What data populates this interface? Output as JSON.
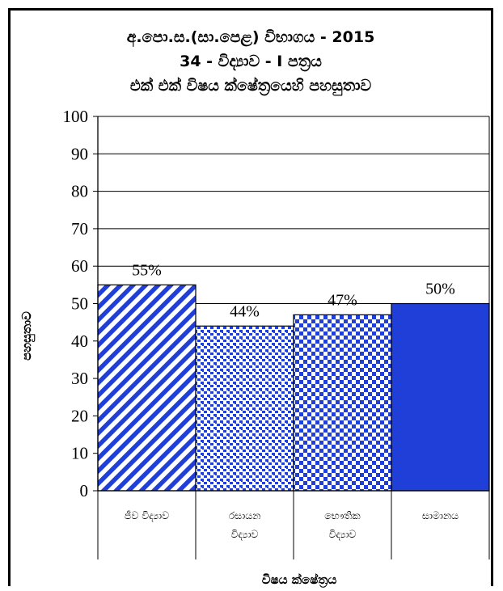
{
  "chart_data": {
    "type": "bar",
    "title_lines": [
      "අ.පො.ස.(සා.පෙළ) විභාගය - 2015",
      "34  -  විද්‍යාව  -  I පත්‍රය",
      "එක් එක් විෂය ක්ෂේත්‍රයෙහි පහසුතාව"
    ],
    "categories": [
      [
        "ජීව විද්‍යාව"
      ],
      [
        "රසායන",
        "විද්‍යාව"
      ],
      [
        "භෞතික",
        "විද්‍යාව"
      ],
      [
        "සාමානය"
      ]
    ],
    "values": [
      55,
      44,
      47,
      50
    ],
    "value_labels": [
      "55%",
      "44%",
      "47%",
      "50%"
    ],
    "patterns": [
      "diagonal-stripes",
      "dotted",
      "checker",
      "solid"
    ],
    "ylabel": "පහසුතාව",
    "xlabel": "විෂය ක්ෂේත්‍රය",
    "ylim": [
      0,
      100
    ],
    "yticks": [
      0,
      10,
      20,
      30,
      40,
      50,
      60,
      70,
      80,
      90,
      100
    ],
    "grid": true,
    "colors": {
      "bar": "#1f3fd8",
      "bar_light": "#ffffff",
      "grid": "#000000"
    }
  }
}
